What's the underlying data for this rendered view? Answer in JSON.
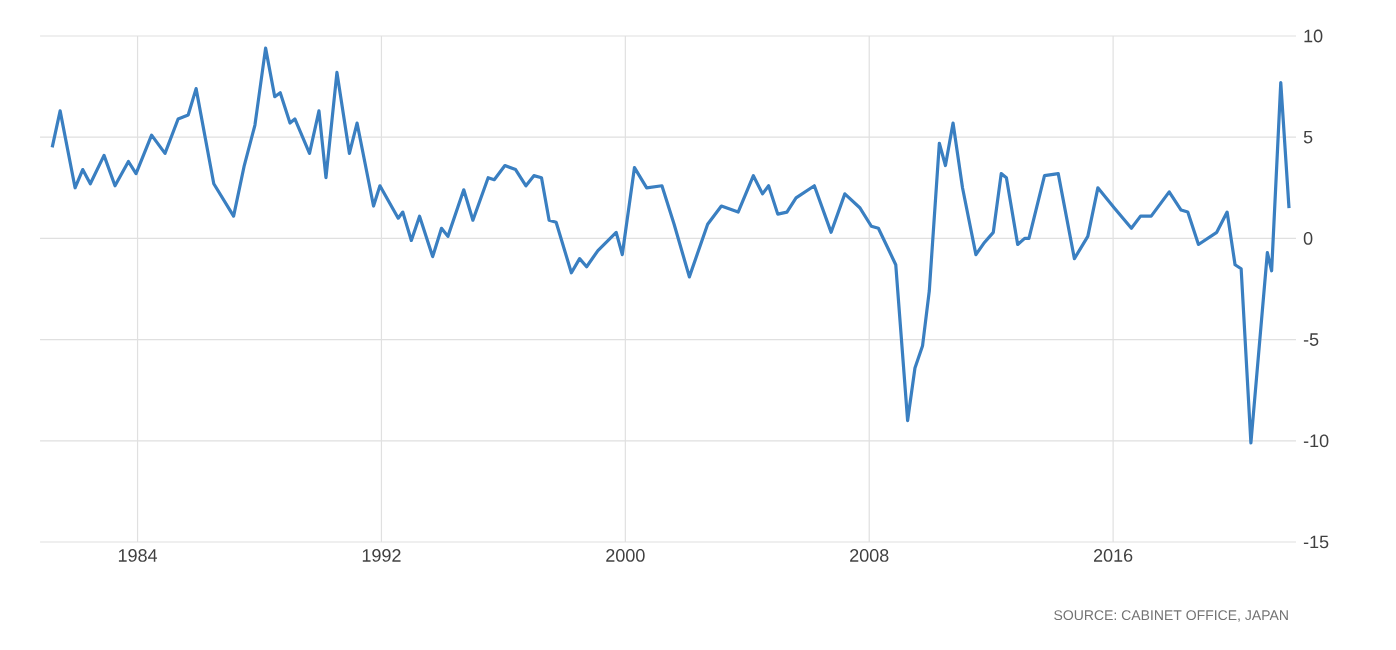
{
  "chart_data": {
    "type": "line",
    "x": [
      1981.2,
      1981.46,
      1981.95,
      1982.2,
      1982.45,
      1982.9,
      1983.26,
      1983.7,
      1983.95,
      1984.46,
      1984.9,
      1985.33,
      1985.66,
      1985.92,
      1986.5,
      1987.15,
      1987.5,
      1987.85,
      1988.2,
      1988.5,
      1988.68,
      1989.0,
      1989.16,
      1989.64,
      1989.95,
      1990.18,
      1990.54,
      1990.95,
      1991.2,
      1991.74,
      1991.95,
      1992.55,
      1992.7,
      1992.98,
      1993.25,
      1993.68,
      1993.97,
      1994.18,
      1994.7,
      1995.0,
      1995.5,
      1995.7,
      1996.05,
      1996.4,
      1996.74,
      1997.0,
      1997.25,
      1997.5,
      1997.73,
      1998.23,
      1998.5,
      1998.73,
      1999.1,
      1999.7,
      1999.9,
      2000.3,
      2000.7,
      2001.2,
      2001.6,
      2002.1,
      2002.7,
      2003.15,
      2003.7,
      2004.2,
      2004.5,
      2004.7,
      2005.0,
      2005.3,
      2005.6,
      2006.2,
      2006.75,
      2007.2,
      2007.7,
      2008.07,
      2008.3,
      2008.65,
      2008.87,
      2009.26,
      2009.5,
      2009.75,
      2009.97,
      2010.3,
      2010.5,
      2010.75,
      2011.06,
      2011.5,
      2011.78,
      2012.07,
      2012.33,
      2012.5,
      2012.87,
      2013.1,
      2013.24,
      2013.75,
      2014.2,
      2014.73,
      2015.17,
      2015.5,
      2016.04,
      2016.6,
      2016.9,
      2017.25,
      2017.84,
      2018.23,
      2018.45,
      2018.8,
      2019.4,
      2019.74,
      2020.0,
      2020.2,
      2020.52,
      2021.06,
      2021.2,
      2021.5,
      2021.77
    ],
    "series": [
      {
        "color": "#3a7fc1",
        "values": [
          4.5,
          6.3,
          2.5,
          3.4,
          2.7,
          4.1,
          2.6,
          3.8,
          3.2,
          5.1,
          4.2,
          5.9,
          6.1,
          7.4,
          2.7,
          1.1,
          3.6,
          5.6,
          9.4,
          7.0,
          7.2,
          5.7,
          5.9,
          4.2,
          6.3,
          3.0,
          8.2,
          4.2,
          5.7,
          1.6,
          2.6,
          1.0,
          1.3,
          -0.1,
          1.1,
          -0.9,
          0.5,
          0.1,
          2.4,
          0.9,
          3.0,
          2.9,
          3.6,
          3.4,
          2.6,
          3.1,
          3.0,
          0.9,
          0.8,
          -1.7,
          -1.0,
          -1.4,
          -0.6,
          0.3,
          -0.8,
          3.5,
          2.5,
          2.6,
          0.7,
          -1.9,
          0.7,
          1.6,
          1.3,
          3.1,
          2.2,
          2.6,
          1.2,
          1.3,
          2.0,
          2.6,
          0.3,
          2.2,
          1.5,
          0.6,
          0.5,
          -0.6,
          -1.3,
          -9.0,
          -6.4,
          -5.3,
          -2.6,
          4.7,
          3.6,
          5.7,
          2.5,
          -0.8,
          -0.2,
          0.3,
          3.2,
          3.0,
          -0.3,
          0.0,
          0.0,
          3.1,
          3.2,
          -1.0,
          0.1,
          2.5,
          1.5,
          0.5,
          1.1,
          1.1,
          2.3,
          1.4,
          1.3,
          -0.3,
          0.3,
          1.3,
          -1.3,
          -1.5,
          -10.1,
          -0.7,
          -1.6,
          7.7,
          1.5
        ]
      }
    ],
    "xlim": [
      1980.8,
      2022.0
    ],
    "xticks": [
      1984,
      1992,
      2000,
      2008,
      2016
    ],
    "ylim": [
      -15,
      10
    ],
    "yticks": [
      -15,
      -10,
      -5,
      0,
      5,
      10
    ],
    "grid": true,
    "line_style": "solid",
    "annotations": [
      "SOURCE: CABINET OFFICE, JAPAN"
    ]
  }
}
